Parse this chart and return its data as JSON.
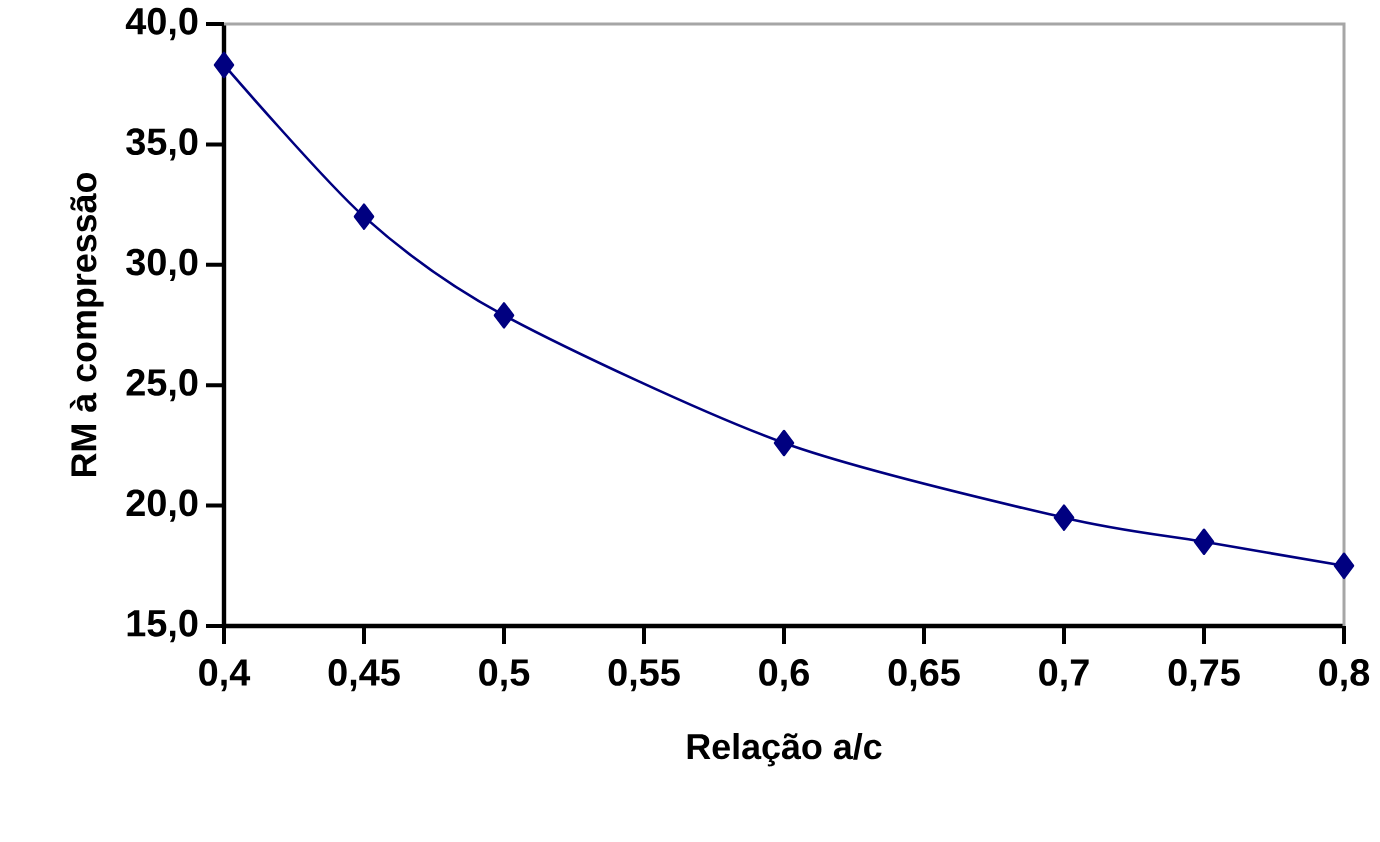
{
  "chart_data": {
    "type": "line",
    "xlabel": "Relação a/c",
    "ylabel": "RM à compressão",
    "x": [
      0.4,
      0.45,
      0.5,
      0.6,
      0.7,
      0.75,
      0.8
    ],
    "series": [
      {
        "color": "#000080",
        "values": [
          38.3,
          32.0,
          27.9,
          22.6,
          19.5,
          18.5,
          17.5
        ]
      }
    ],
    "xlim": [
      0.4,
      0.8
    ],
    "xticks": [
      {
        "value": 0.4,
        "label": "0,4"
      },
      {
        "value": 0.45,
        "label": "0,45"
      },
      {
        "value": 0.5,
        "label": "0,5"
      },
      {
        "value": 0.55,
        "label": "0,55"
      },
      {
        "value": 0.6,
        "label": "0,6"
      },
      {
        "value": 0.65,
        "label": "0,65"
      },
      {
        "value": 0.7,
        "label": "0,7"
      },
      {
        "value": 0.75,
        "label": "0,75"
      },
      {
        "value": 0.8,
        "label": "0,8"
      }
    ],
    "ylim": [
      15,
      40
    ],
    "yticks": [
      {
        "value": 15,
        "label": "15,0"
      },
      {
        "value": 20,
        "label": "20,0"
      },
      {
        "value": 25,
        "label": "25,0"
      },
      {
        "value": 30,
        "label": "30,0"
      },
      {
        "value": 35,
        "label": "35,0"
      },
      {
        "value": 40,
        "label": "40,0"
      }
    ],
    "grid": false,
    "marker": "diamond",
    "line_style": "solid"
  }
}
